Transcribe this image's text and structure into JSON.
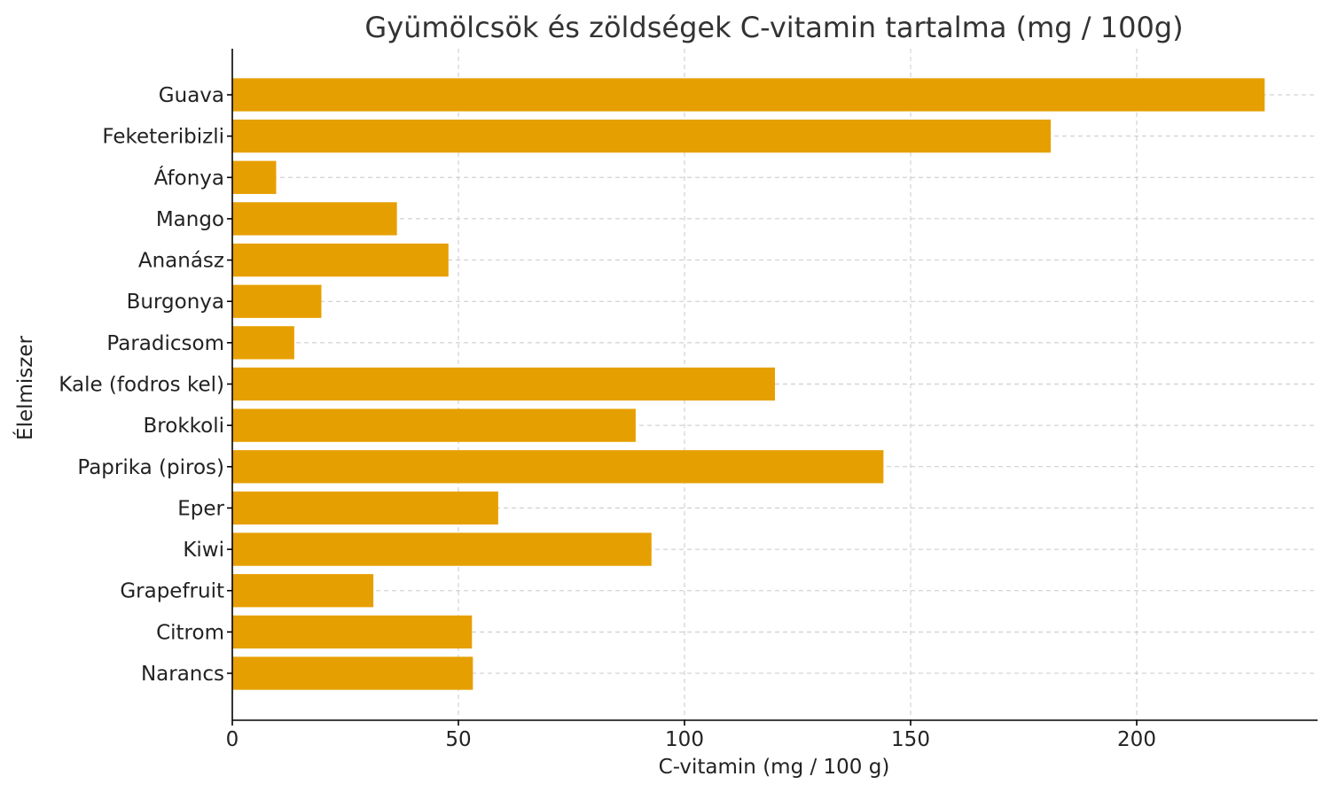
{
  "chart_data": {
    "type": "bar",
    "orientation": "horizontal",
    "title": "Gyümölcsök és zöldségek C-vitamin tartalma (mg / 100g)",
    "xlabel": "C-vitamin (mg / 100 g)",
    "ylabel": "Élelmiszer",
    "xlim": [
      0,
      240
    ],
    "xticks": [
      0,
      50,
      100,
      150,
      200
    ],
    "grid": true,
    "bar_color": "#E69F00",
    "categories": [
      "Narancs",
      "Citrom",
      "Grapefruit",
      "Kiwi",
      "Eper",
      "Paprika (piros)",
      "Brokkoli",
      "Kale (fodros kel)",
      "Paradicsom",
      "Burgonya",
      "Ananász",
      "Mango",
      "Áfonya",
      "Feketeribizli",
      "Guava"
    ],
    "values": [
      53.2,
      53,
      31.2,
      92.7,
      58.8,
      144,
      89.2,
      120,
      13.7,
      19.7,
      47.8,
      36.4,
      9.7,
      181,
      228.3
    ]
  }
}
